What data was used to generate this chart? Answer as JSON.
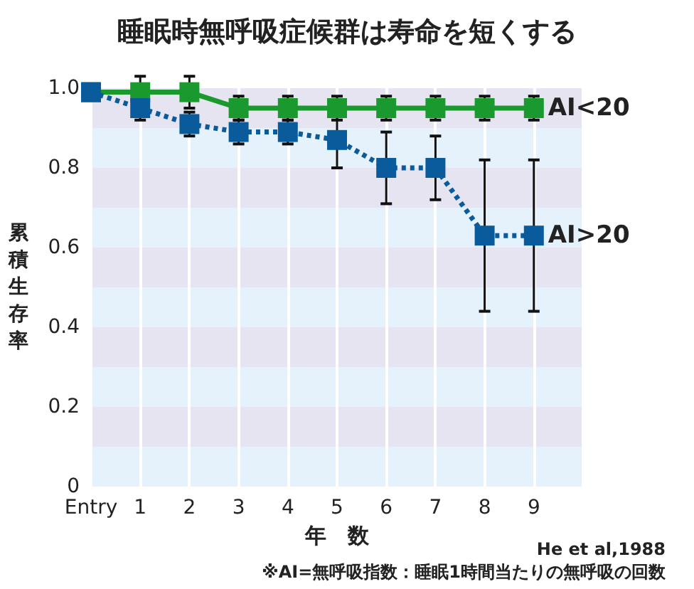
{
  "chart_data": {
    "type": "line",
    "title": "睡眠時無呼吸症候群は寿命を短くする",
    "xlabel": "年　数",
    "ylabel": "累積生存率",
    "categories": [
      "Entry",
      "1",
      "2",
      "3",
      "4",
      "5",
      "6",
      "7",
      "8",
      "9"
    ],
    "series": [
      {
        "name": "AI<20",
        "color": "#1a9a2e",
        "line_style": "solid",
        "values": [
          0.99,
          0.99,
          0.99,
          0.95,
          0.95,
          0.95,
          0.95,
          0.95,
          0.95,
          0.95
        ],
        "errors": [
          null,
          0.04,
          0.04,
          0.03,
          0.03,
          0.03,
          0.03,
          0.03,
          0.03,
          0.03
        ]
      },
      {
        "name": "AI>20",
        "color": "#0a5b9c",
        "line_style": "dotted",
        "values": [
          0.99,
          0.95,
          0.91,
          0.89,
          0.89,
          0.87,
          0.8,
          0.8,
          0.63,
          0.63
        ],
        "errors": [
          null,
          0.03,
          0.03,
          0.03,
          0.03,
          0.07,
          0.09,
          0.08,
          0.19,
          0.19
        ]
      }
    ],
    "ylim": [
      0,
      1
    ],
    "yticks": [
      0,
      0.2,
      0.4,
      0.6,
      0.8,
      {
        "value": 1,
        "label": "1.0"
      }
    ],
    "bands": [
      {
        "axis": "y",
        "from": 0,
        "to": 0.1,
        "color": "#e6f2fb"
      },
      {
        "axis": "y",
        "from": 0.1,
        "to": 0.2,
        "color": "#e5e4f0"
      },
      {
        "axis": "y",
        "from": 0.2,
        "to": 0.3,
        "color": "#e6f2fb"
      },
      {
        "axis": "y",
        "from": 0.3,
        "to": 0.4,
        "color": "#e5e4f0"
      },
      {
        "axis": "y",
        "from": 0.4,
        "to": 0.5,
        "color": "#e6f2fb"
      },
      {
        "axis": "y",
        "from": 0.5,
        "to": 0.6,
        "color": "#e5e4f0"
      },
      {
        "axis": "y",
        "from": 0.6,
        "to": 0.7,
        "color": "#e6f2fb"
      },
      {
        "axis": "y",
        "from": 0.7,
        "to": 0.8,
        "color": "#e5e4f0"
      },
      {
        "axis": "y",
        "from": 0.8,
        "to": 0.9,
        "color": "#e6f2fb"
      },
      {
        "axis": "y",
        "from": 0.9,
        "to": 1,
        "color": "#e5e4f0"
      }
    ],
    "grid": "x",
    "marker": "square",
    "legend": false,
    "annotations": [
      "He et al,1988",
      "※AI=無呼吸指数：睡眠1時間当たりの無呼吸の回数"
    ]
  }
}
